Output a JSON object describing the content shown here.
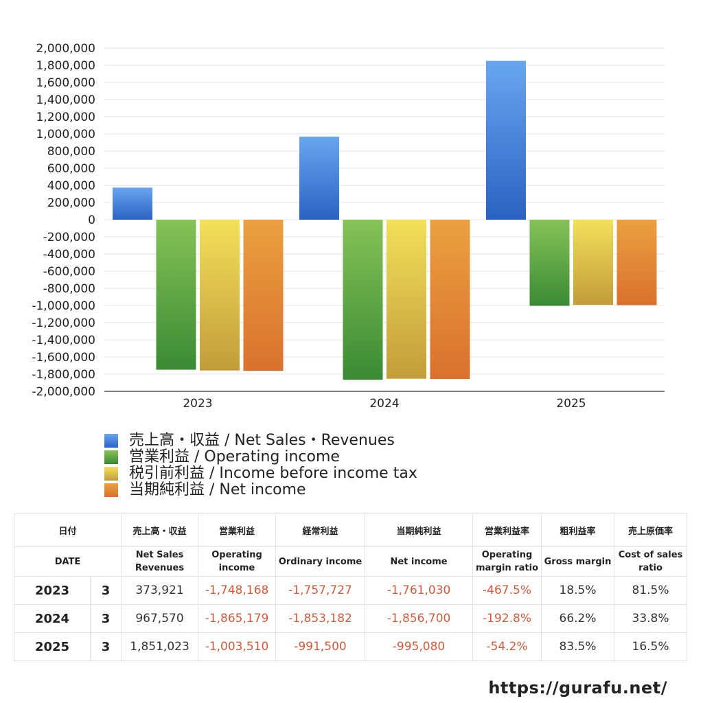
{
  "chart_data": {
    "type": "bar",
    "categories": [
      "2023",
      "2024",
      "2025"
    ],
    "series": [
      {
        "name": "売上高・収益 / Net Sales・Revenues",
        "values": [
          373921,
          967570,
          1851023
        ],
        "color_top": "#68a6f0",
        "color_bottom": "#2b62c2"
      },
      {
        "name": "営業利益 / Operating income",
        "values": [
          -1748168,
          -1865179,
          -1003510
        ],
        "color_top": "#86c257",
        "color_bottom": "#3a8a34"
      },
      {
        "name": "税引前利益 / Income before income tax",
        "values": [
          -1757727,
          -1853182,
          -991500
        ],
        "color_top": "#f3e05a",
        "color_bottom": "#c29c3a"
      },
      {
        "name": "当期純利益 / Net income",
        "values": [
          -1761030,
          -1856700,
          -995080
        ],
        "color_top": "#eba040",
        "color_bottom": "#d9712e"
      }
    ],
    "yticks": [
      "2,000,000",
      "1,800,000",
      "1,600,000",
      "1,400,000",
      "1,200,000",
      "1,000,000",
      "800,000",
      "600,000",
      "400,000",
      "200,000",
      "0",
      "-200,000",
      "-400,000",
      "-600,000",
      "-800,000",
      "-1,000,000",
      "-1,200,000",
      "-1,400,000",
      "-1,600,000",
      "-1,800,000",
      "-2,000,000"
    ],
    "ylim": [
      -2000000,
      2000000
    ],
    "grid": true,
    "legend_position": "bottom"
  },
  "table": {
    "headers_ja": [
      "日付",
      "",
      "売上高・収益",
      "営業利益",
      "経常利益",
      "当期純利益",
      "営業利益率",
      "粗利益率",
      "売上原価率"
    ],
    "headers_en": [
      "DATE",
      "",
      "Net Sales Revenues",
      "Operating income",
      "Ordinary income",
      "Net income",
      "Operating margin ratio",
      "Gross margin",
      "Cost of sales ratio"
    ],
    "rows": [
      {
        "year": "2023",
        "month": "3",
        "sales": "373,921",
        "operating": "-1,748,168",
        "ordinary": "-1,757,727",
        "net": "-1,761,030",
        "op_margin": "-467.5%",
        "gross_margin": "18.5%",
        "cost_ratio": "81.5%"
      },
      {
        "year": "2024",
        "month": "3",
        "sales": "967,570",
        "operating": "-1,865,179",
        "ordinary": "-1,853,182",
        "net": "-1,856,700",
        "op_margin": "-192.8%",
        "gross_margin": "66.2%",
        "cost_ratio": "33.8%"
      },
      {
        "year": "2025",
        "month": "3",
        "sales": "1,851,023",
        "operating": "-1,003,510",
        "ordinary": "-991,500",
        "net": "-995,080",
        "op_margin": "-54.2%",
        "gross_margin": "83.5%",
        "cost_ratio": "16.5%"
      }
    ]
  },
  "footer": {
    "url": "https://gurafu.net/"
  }
}
